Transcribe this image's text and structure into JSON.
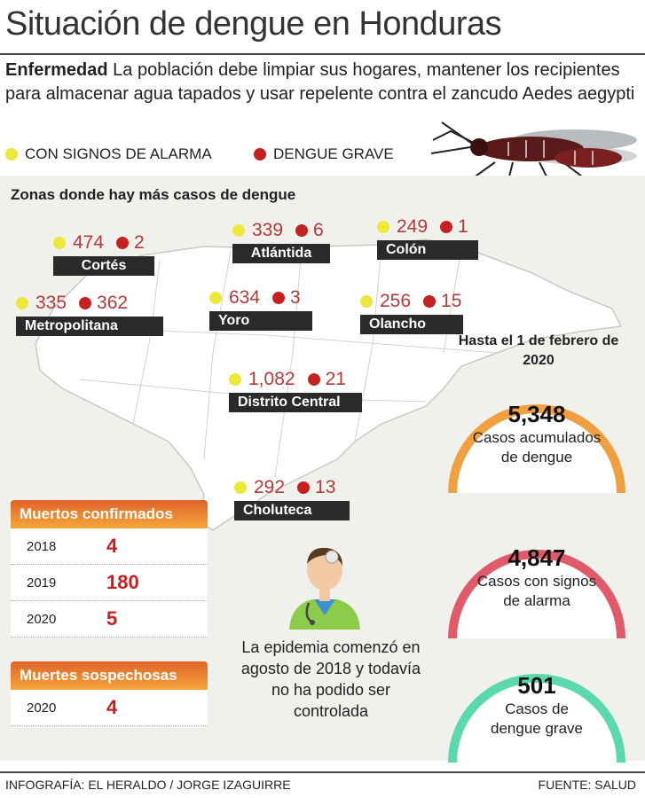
{
  "title": "Situación de dengue en Honduras",
  "intro": {
    "bold": "Enfermedad",
    "text": "La población debe limpiar sus hogares, mantener los recipientes para almacenar agua tapados y usar repelente contra el zancudo Aedes aegypti"
  },
  "legend": {
    "alarm": "CON SIGNOS DE ALARMA",
    "severe": "DENGUE GRAVE",
    "alarm_color": "#ece83a",
    "severe_color": "#c62020"
  },
  "zones_title": "Zonas donde hay más casos de dengue",
  "regions": [
    {
      "name": "Cortés",
      "alarm": "474",
      "severe": "2"
    },
    {
      "name": "Atlántida",
      "alarm": "339",
      "severe": "6"
    },
    {
      "name": "Colón",
      "alarm": "249",
      "severe": "1"
    },
    {
      "name": "Metropolitana",
      "alarm": "335",
      "severe": "362"
    },
    {
      "name": "Yoro",
      "alarm": "634",
      "severe": "3"
    },
    {
      "name": "Olancho",
      "alarm": "256",
      "severe": "15"
    },
    {
      "name": "Distrito Central",
      "alarm": "1,082",
      "severe": "21"
    },
    {
      "name": "Choluteca",
      "alarm": "292",
      "severe": "13"
    }
  ],
  "summary": {
    "date": "Hasta el 1 de febrero de 2020",
    "stats": [
      {
        "value": "5,348",
        "label": "Casos acumulados de dengue",
        "color": "#f0a040"
      },
      {
        "value": "4,847",
        "label": "Casos con signos de alarma",
        "color": "#e05a6a"
      },
      {
        "value": "501",
        "label": "Casos de dengue grave",
        "color": "#5ad8b0"
      }
    ]
  },
  "deaths_confirmed": {
    "title": "Muertos confirmados",
    "rows": [
      {
        "year": "2018",
        "value": "4"
      },
      {
        "year": "2019",
        "value": "180"
      },
      {
        "year": "2020",
        "value": "5"
      }
    ]
  },
  "deaths_suspected": {
    "title": "Muertes sospechosas",
    "rows": [
      {
        "year": "2020",
        "value": "4"
      }
    ]
  },
  "epidemic_note": "La epidemia comenzó en agosto de 2018 y todavía no ha podido ser controlada",
  "footer": {
    "credit": "INFOGRAFÍA: EL HERALDO / JORGE IZAGUIRRE",
    "source": "FUENTE: SALUD"
  }
}
